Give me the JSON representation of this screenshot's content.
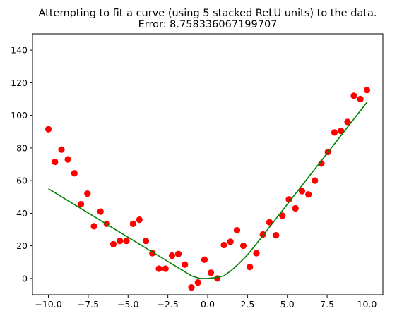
{
  "chart_data": {
    "type": "scatter",
    "title_line1": "Attempting to fit a curve (using 5 stacked ReLU units) to the data.",
    "title_line2": "Error: 8.758336067199707",
    "xlabel": "",
    "ylabel": "",
    "xlim": [
      -11.0,
      11.0
    ],
    "ylim": [
      -10,
      150
    ],
    "x_ticks": [
      -10.0,
      -7.5,
      -5.0,
      -2.5,
      0.0,
      2.5,
      5.0,
      7.5,
      10.0
    ],
    "x_tick_labels": [
      "−10.0",
      "−7.5",
      "−5.0",
      "−2.5",
      "0.0",
      "2.5",
      "5.0",
      "7.5",
      "10.0"
    ],
    "y_ticks": [
      0,
      20,
      40,
      60,
      80,
      100,
      120,
      140
    ],
    "y_tick_labels": [
      "0",
      "20",
      "40",
      "60",
      "80",
      "100",
      "120",
      "140"
    ],
    "grid": false,
    "series": [
      {
        "kind": "scatter",
        "color": "#ff0000",
        "x": [
          -10.0,
          -9.59,
          -9.18,
          -8.78,
          -8.37,
          -7.96,
          -7.55,
          -7.14,
          -6.73,
          -6.33,
          -5.92,
          -5.51,
          -5.1,
          -4.69,
          -4.29,
          -3.88,
          -3.47,
          -3.06,
          -2.65,
          -2.24,
          -1.84,
          -1.43,
          -1.02,
          -0.61,
          -0.2,
          0.2,
          0.61,
          1.02,
          1.43,
          1.84,
          2.24,
          2.65,
          3.06,
          3.47,
          3.88,
          4.29,
          4.69,
          5.1,
          5.51,
          5.92,
          6.33,
          6.73,
          7.14,
          7.55,
          7.96,
          8.37,
          8.78,
          9.18,
          9.59,
          10.0
        ],
        "y": [
          91.5,
          71.5,
          79.0,
          73.0,
          64.5,
          45.5,
          52.0,
          32.0,
          41.0,
          33.5,
          21.0,
          23.0,
          23.0,
          33.5,
          36.0,
          23.0,
          15.5,
          6.0,
          6.0,
          14.0,
          15.0,
          8.5,
          -5.5,
          -2.5,
          11.5,
          3.5,
          0.0,
          20.5,
          22.5,
          29.5,
          20.0,
          7.0,
          15.5,
          27.0,
          34.5,
          26.5,
          38.5,
          48.5,
          43.0,
          53.5,
          51.5,
          60.0,
          70.5,
          77.5,
          89.5,
          90.5,
          96.0,
          112.0,
          110.0,
          115.5
        ]
      },
      {
        "kind": "line",
        "color": "#008000",
        "x": [
          -10.0,
          -1.0,
          -0.5,
          0.0,
          0.5,
          1.0,
          1.5,
          2.0,
          2.5,
          3.0,
          10.0
        ],
        "y": [
          55.0,
          1.5,
          0.0,
          0.0,
          0.5,
          1.5,
          5.0,
          9.5,
          14.5,
          20.5,
          108.0
        ]
      }
    ]
  }
}
